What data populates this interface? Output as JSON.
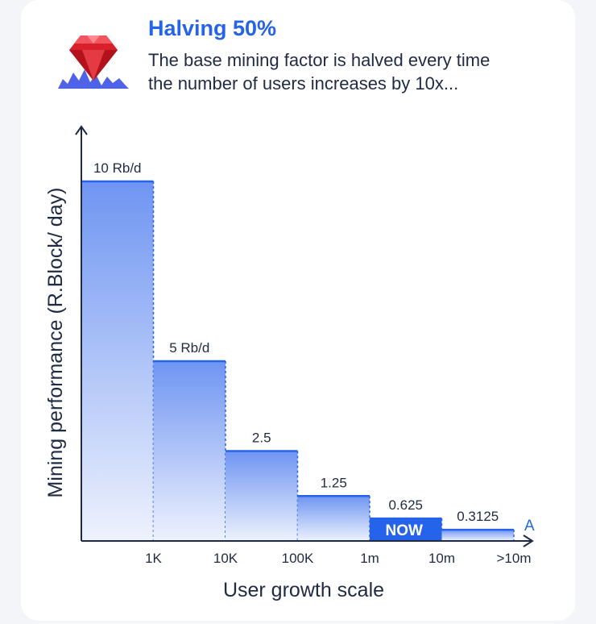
{
  "header": {
    "title": "Halving 50%",
    "subtitle_lines": [
      "The base mining factor is halved every time",
      "the number of users increases by 10x..."
    ]
  },
  "icons": {
    "logo": "ruby-gem-icon"
  },
  "colors": {
    "accent": "#2563eb",
    "bar_top": "#6f95f2",
    "bar_bottom": "#eef2fd",
    "axis": "#1f2a44",
    "now_fill": "#2563eb"
  },
  "chart_data": {
    "type": "bar",
    "categories": [
      "1K",
      "10K",
      "100K",
      "1m",
      "10m",
      ">10m"
    ],
    "values": [
      10,
      5,
      2.5,
      1.25,
      0.625,
      0.3125
    ],
    "data_labels": [
      "10 Rb/d",
      "5 Rb/d",
      "2.5",
      "1.25",
      "0.625",
      "0.3125"
    ],
    "ylabel": "Mining performance (R.Block/ day)",
    "xlabel": "User growth scale",
    "ylim": [
      0,
      10
    ],
    "highlight": {
      "index": 4,
      "label": "NOW"
    },
    "annotation": "A",
    "grid": false
  }
}
